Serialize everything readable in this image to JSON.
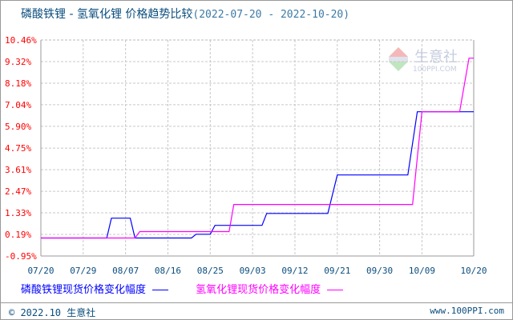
{
  "title": {
    "main": "磷酸铁锂 - 氢氧化锂 价格趋势比较",
    "range": "(2022-07-20 - 2022-10-20)"
  },
  "watermark": {
    "logo_text": "PPI",
    "name": "生意社",
    "url": "100PPI.COM"
  },
  "footer": {
    "copyright": "© 2022.10 生意社",
    "site": "www.100PPI.com"
  },
  "chart_data": {
    "type": "line",
    "title": "磷酸铁锂 - 氢氧化锂 价格趋势比较",
    "xlabel": "",
    "ylabel": "",
    "year": 2022,
    "xlim": [
      "07/20",
      "10/20"
    ],
    "ylim": [
      -0.95,
      10.46
    ],
    "y_ticks": [
      "10.46%",
      "9.32%",
      "8.18%",
      "7.04%",
      "5.90%",
      "4.75%",
      "3.61%",
      "2.47%",
      "1.33%",
      "0.19%",
      "-0.95%"
    ],
    "x_ticks": [
      "07/20",
      "07/29",
      "08/07",
      "08/16",
      "08/25",
      "09/03",
      "09/12",
      "09/21",
      "09/30",
      "10/09",
      "10/20"
    ],
    "grid": true,
    "legend": "bottom",
    "series": [
      {
        "name": "磷酸铁锂现货价格变化幅度",
        "color": "#0000ff",
        "points": [
          [
            "07/20",
            0
          ],
          [
            "08/03",
            0
          ],
          [
            "08/04",
            1.05
          ],
          [
            "08/08",
            1.05
          ],
          [
            "08/09",
            0
          ],
          [
            "08/21",
            0
          ],
          [
            "08/22",
            0.2
          ],
          [
            "08/25",
            0.2
          ],
          [
            "08/26",
            0.67
          ],
          [
            "09/05",
            0.67
          ],
          [
            "09/06",
            1.3
          ],
          [
            "09/19",
            1.3
          ],
          [
            "09/21",
            3.33
          ],
          [
            "10/06",
            3.33
          ],
          [
            "10/08",
            6.67
          ],
          [
            "10/20",
            6.67
          ]
        ]
      },
      {
        "name": "氢氧化锂现货价格变化幅度",
        "color": "#ff00ff",
        "points": [
          [
            "07/20",
            0
          ],
          [
            "08/09",
            0
          ],
          [
            "08/10",
            0.34
          ],
          [
            "08/29",
            0.34
          ],
          [
            "08/30",
            1.77
          ],
          [
            "10/07",
            1.77
          ],
          [
            "10/09",
            6.67
          ],
          [
            "10/17",
            6.67
          ],
          [
            "10/19",
            9.5
          ],
          [
            "10/20",
            9.5
          ]
        ]
      }
    ]
  }
}
